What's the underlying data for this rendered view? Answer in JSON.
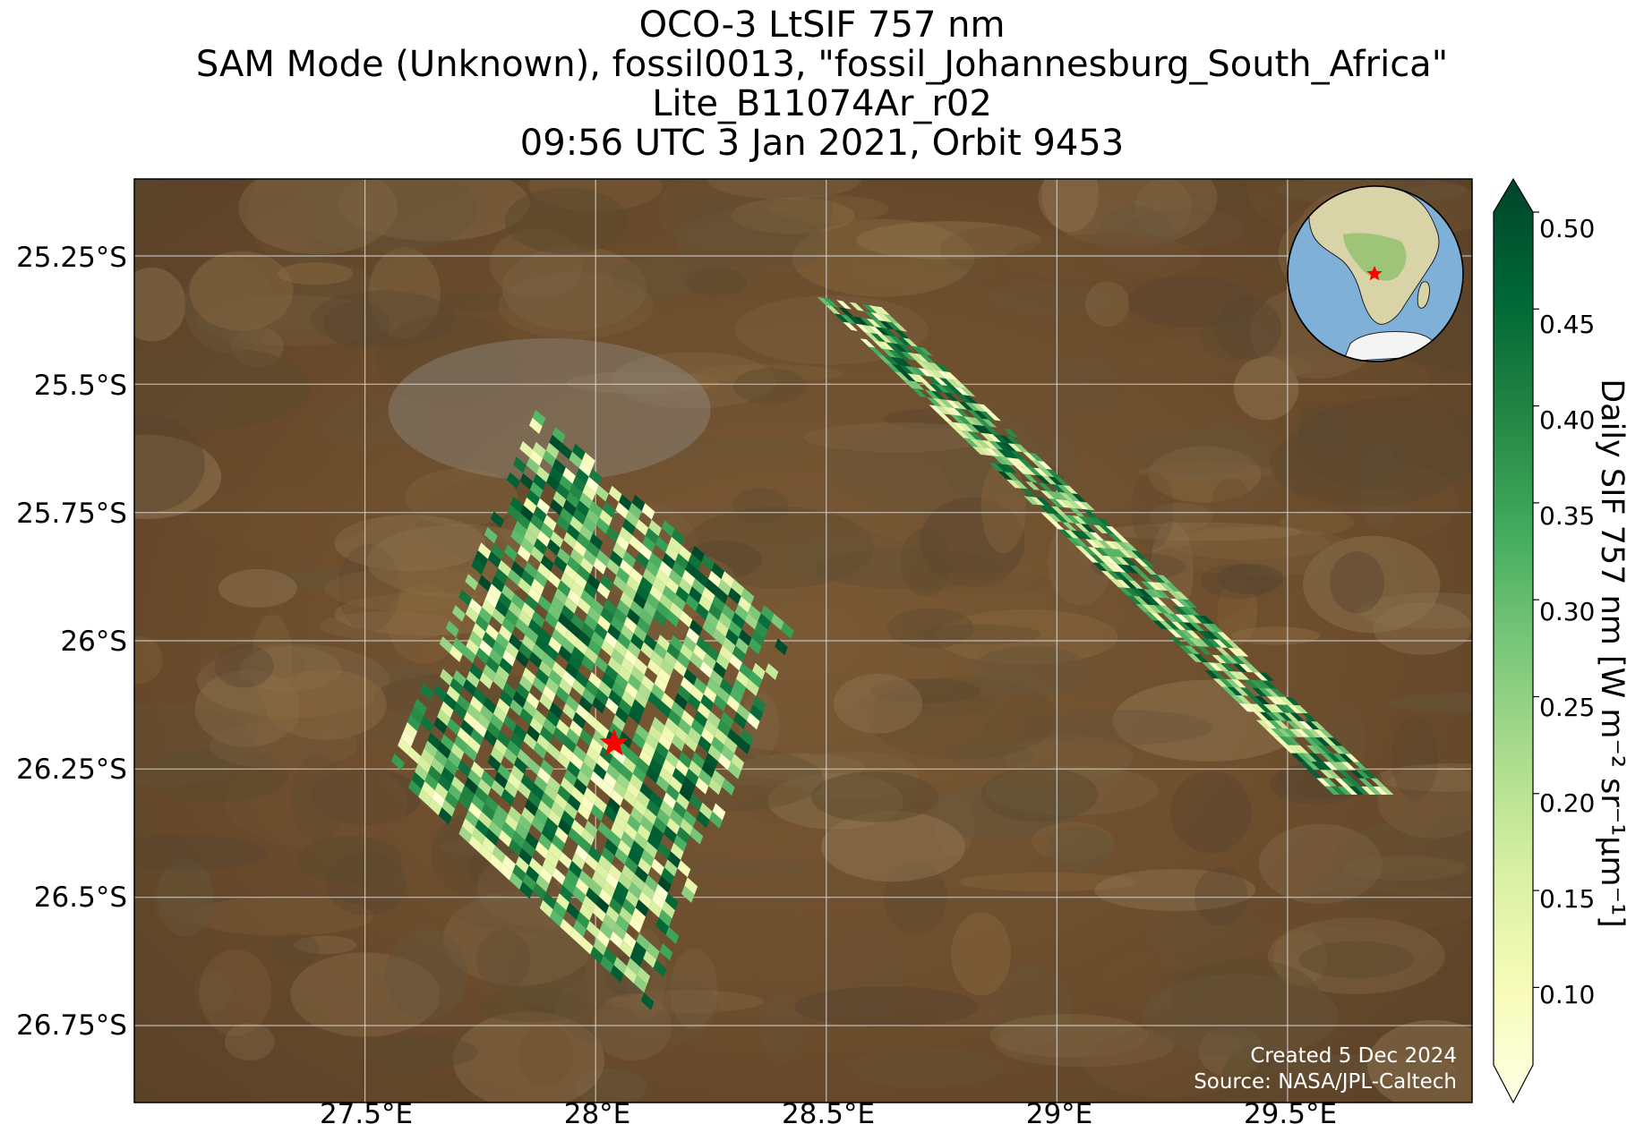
{
  "title": {
    "line1": "OCO-3 LtSIF 757 nm",
    "line2": "SAM Mode (Unknown), fossil0013, \"fossil_Johannesburg_South_Africa\"",
    "line3": "Lite_B11074Ar_r02",
    "line4": "09:56 UTC 3 Jan 2021, Orbit 9453"
  },
  "map": {
    "lat_ticks": [
      "25.25°S",
      "25.5°S",
      "25.75°S",
      "26°S",
      "26.25°S",
      "26.5°S",
      "26.75°S"
    ],
    "lon_ticks": [
      "27.5°E",
      "28°E",
      "28.5°E",
      "29°E",
      "29.5°E"
    ],
    "lat_range": [
      -26.9,
      -25.1
    ],
    "lon_range": [
      27.0,
      29.9
    ],
    "target": {
      "lat": -26.2,
      "lon": 28.04,
      "marker_color": "#ff0000"
    },
    "credit_line1": "Created 5 Dec 2024",
    "credit_line2": "Source: NASA/JPL-Caltech",
    "gridlines": true
  },
  "colorbar": {
    "label": "Daily SIF 757 nm [W m⁻² sr⁻¹μm⁻¹]",
    "ticks": [
      "0.10",
      "0.15",
      "0.20",
      "0.25",
      "0.30",
      "0.35",
      "0.40",
      "0.45",
      "0.50"
    ],
    "range": [
      0.06,
      0.5
    ],
    "colormap": "YlGn",
    "extend": "both"
  },
  "inset_globe": {
    "marker_color": "#ff0000",
    "ocean_color": "#7fb0d8",
    "land_color": "#d9d4a8"
  },
  "chart_data": {
    "type": "heatmap",
    "variable": "Daily SIF 757 nm",
    "units": "W m⁻² sr⁻¹μm⁻¹",
    "swaths": [
      {
        "name": "western swath",
        "corners_lonlat": [
          [
            27.87,
            -25.55
          ],
          [
            28.43,
            -25.98
          ],
          [
            28.12,
            -26.72
          ],
          [
            27.55,
            -26.25
          ]
        ],
        "value_range": [
          0.08,
          0.5
        ]
      },
      {
        "name": "eastern swath",
        "corners_lonlat": [
          [
            28.48,
            -25.33
          ],
          [
            28.62,
            -25.35
          ],
          [
            29.73,
            -26.3
          ],
          [
            29.6,
            -26.3
          ]
        ],
        "value_range": [
          0.08,
          0.5
        ]
      }
    ]
  }
}
